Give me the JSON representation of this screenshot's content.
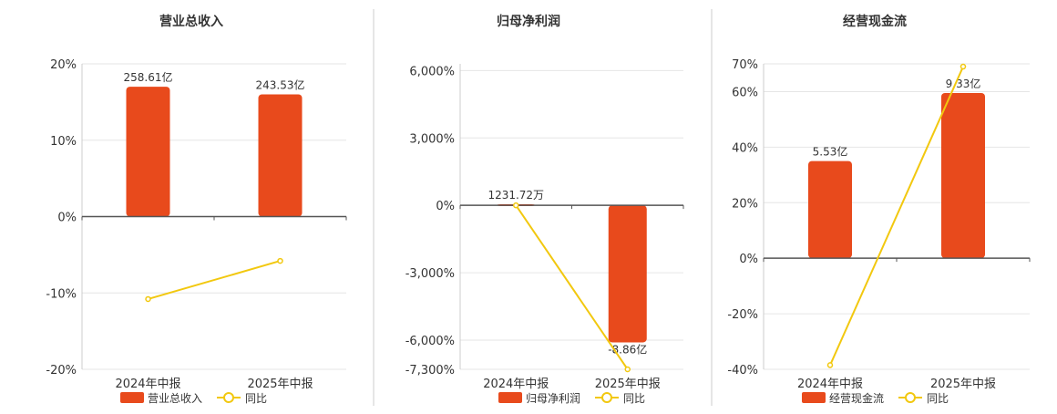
{
  "colors": {
    "bar": "#E84A1C",
    "line": "#F2C80F",
    "grid": "#E6E6E6",
    "axis": "#555555",
    "divider": "#CCCCCC",
    "text": "#333333"
  },
  "chart_data": [
    {
      "type": "bar",
      "title": "营业总收入",
      "categories": [
        "2024年中报",
        "2025年中报"
      ],
      "ylim": [
        -20,
        20
      ],
      "yticks": [
        {
          "v": 20,
          "label": "20%"
        },
        {
          "v": 10,
          "label": "10%"
        },
        {
          "v": 0,
          "label": "0%"
        },
        {
          "v": -10,
          "label": "-10%"
        },
        {
          "v": -20,
          "label": "-20%"
        }
      ],
      "series": [
        {
          "name": "营业总收入",
          "type": "bar",
          "values": [
            17,
            16
          ],
          "labels": [
            "258.61亿",
            "243.53亿"
          ]
        },
        {
          "name": "同比",
          "type": "line",
          "values": [
            -10.8,
            -5.8
          ]
        }
      ],
      "grid": true,
      "legend": "bottom"
    },
    {
      "type": "bar",
      "title": "归母净利润",
      "categories": [
        "2024年中报",
        "2025年中报"
      ],
      "ylim": [
        -7300,
        6300
      ],
      "yticks": [
        {
          "v": 6000,
          "label": "6,000%"
        },
        {
          "v": 3000,
          "label": "3,000%"
        },
        {
          "v": 0,
          "label": "0%"
        },
        {
          "v": -3000,
          "label": "-3,000%"
        },
        {
          "v": -6000,
          "label": "-6,000%"
        },
        {
          "v": -7300,
          "label": "-7,300%"
        }
      ],
      "series": [
        {
          "name": "归母净利润",
          "type": "bar",
          "values": [
            50,
            -6100
          ],
          "labels": [
            "1231.72万",
            "-8.86亿"
          ]
        },
        {
          "name": "同比",
          "type": "line",
          "values": [
            0,
            -7300
          ]
        }
      ],
      "grid": true,
      "legend": "bottom"
    },
    {
      "type": "bar",
      "title": "经营现金流",
      "categories": [
        "2024年中报",
        "2025年中报"
      ],
      "ylim": [
        -40,
        70
      ],
      "yticks": [
        {
          "v": 70,
          "label": "70%"
        },
        {
          "v": 60,
          "label": "60%"
        },
        {
          "v": 40,
          "label": "40%"
        },
        {
          "v": 20,
          "label": "20%"
        },
        {
          "v": 0,
          "label": "0%"
        },
        {
          "v": -20,
          "label": "-20%"
        },
        {
          "v": -40,
          "label": "-40%"
        }
      ],
      "series": [
        {
          "name": "经营现金流",
          "type": "bar",
          "values": [
            35,
            59.5
          ],
          "labels": [
            "5.53亿",
            "9.33亿"
          ]
        },
        {
          "name": "同比",
          "type": "line",
          "values": [
            -38.5,
            69
          ]
        }
      ],
      "grid": true,
      "legend": "bottom"
    }
  ]
}
